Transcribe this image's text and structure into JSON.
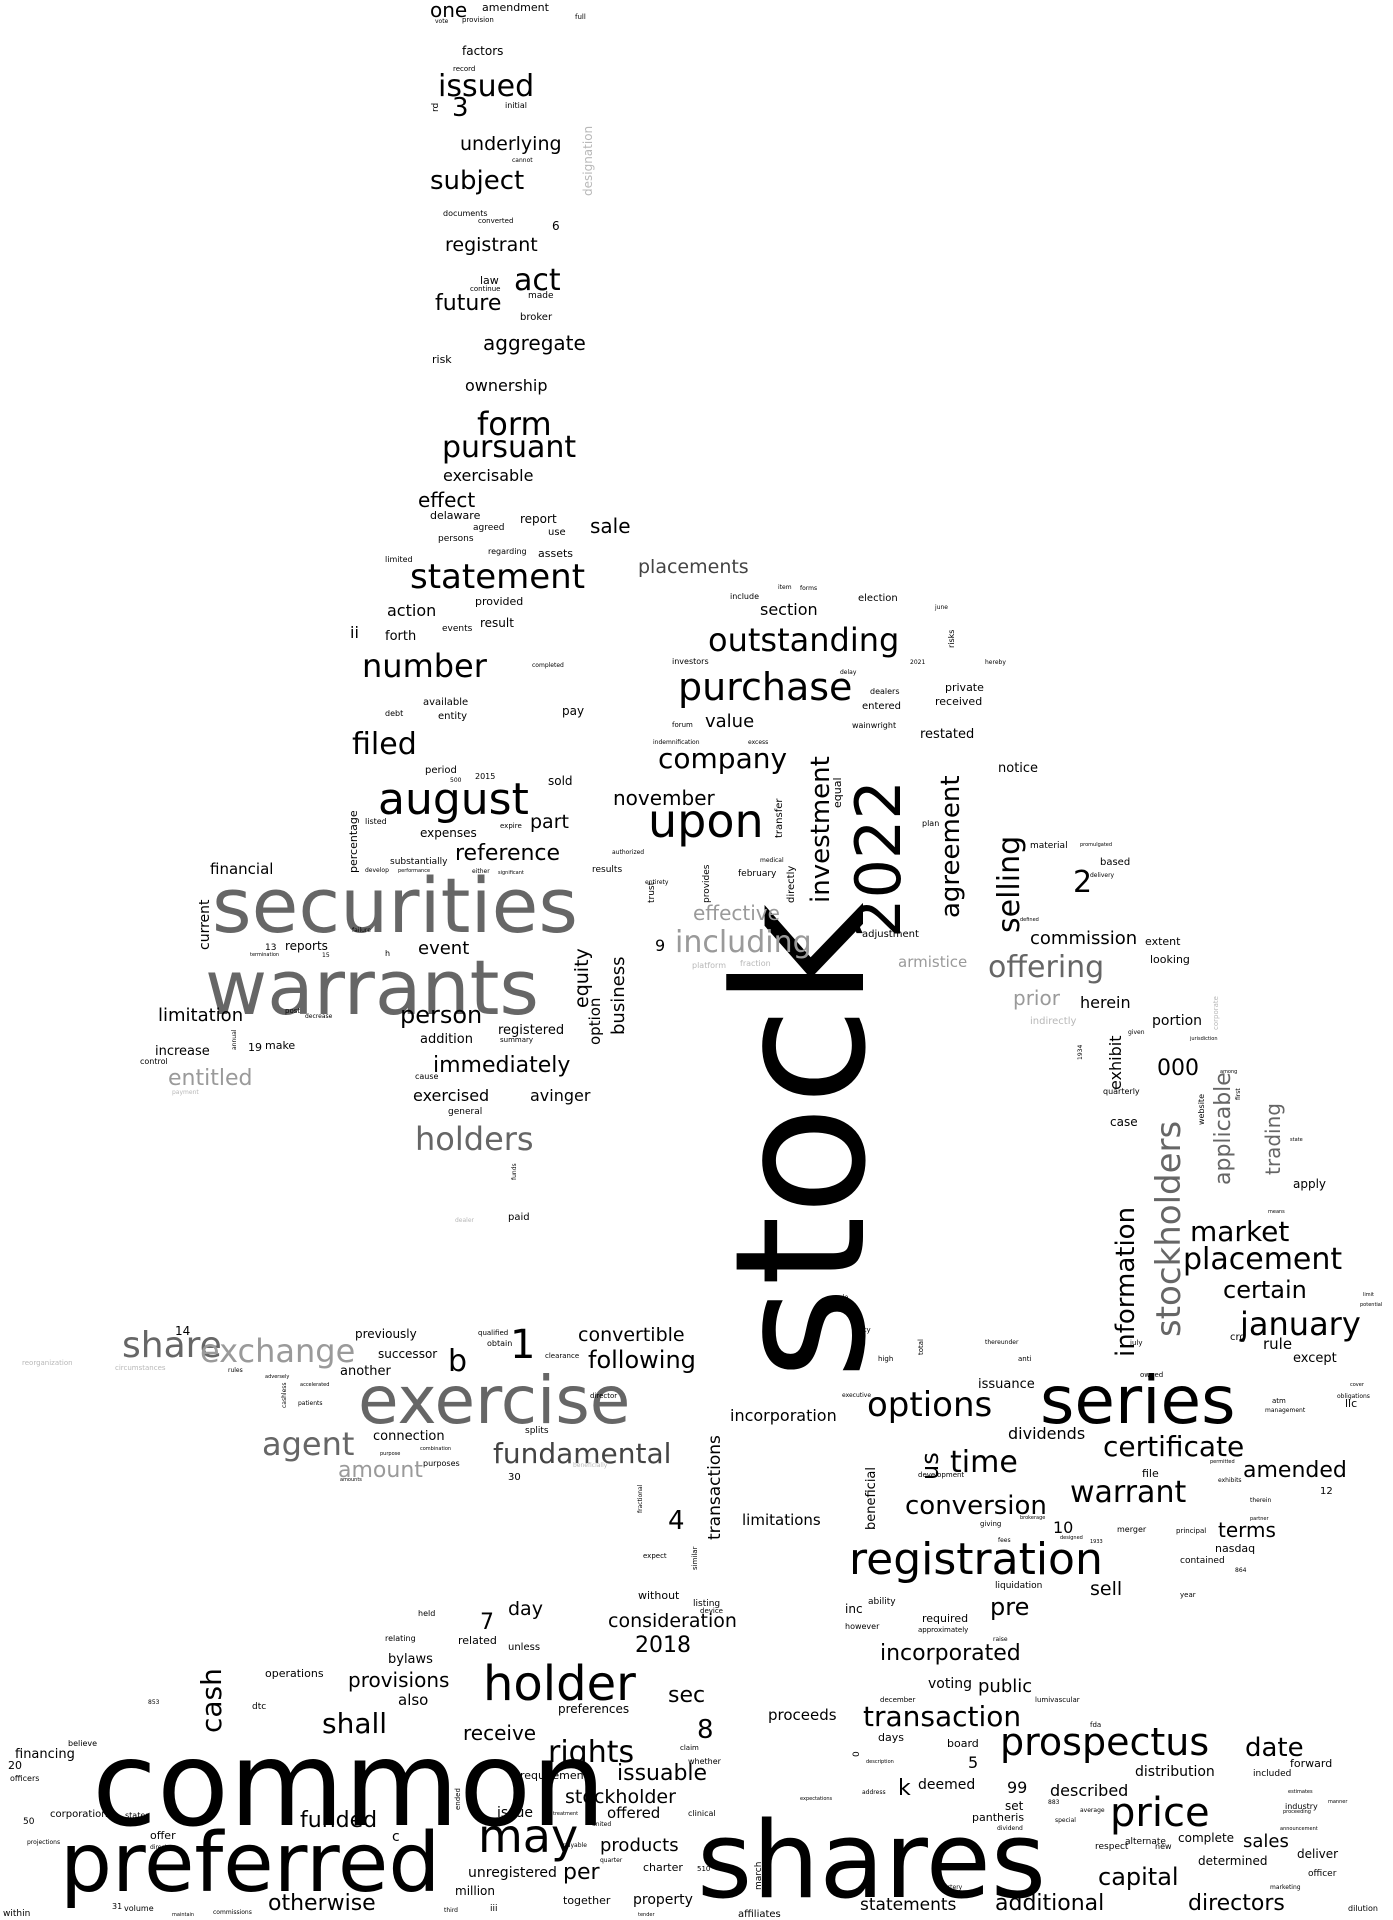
{
  "words": {
    "stock": "stock",
    "common": "common",
    "shares": "shares",
    "preferred": "preferred",
    "securities": "securities",
    "warrants": "warrants",
    "exercise": "exercise",
    "series": "series",
    "2022": "2022",
    "registration": "registration",
    "holder": "holder",
    "prospectus": "prospectus",
    "may": "may",
    "august": "august",
    "upon": "upon",
    "purchase": "purchase",
    "statement": "statement",
    "outstanding": "outstanding",
    "number": "number",
    "filed": "filed",
    "company": "company",
    "investment": "investment",
    "agreement": "agreement",
    "selling": "selling",
    "including": "including",
    "offering": "offering",
    "stockholders": "stockholders",
    "information": "information",
    "placement": "placement",
    "market": "market",
    "january": "january",
    "certain": "certain",
    "options": "options",
    "certificate": "certificate",
    "amended": "amended",
    "warrant": "warrant",
    "time": "time",
    "conversion": "conversion",
    "terms": "terms",
    "fundamental": "fundamental",
    "agent": "agent",
    "amount": "amount",
    "share": "share",
    "exchange": "exchange",
    "following": "following",
    "convertible": "convertible",
    "holders": "holders",
    "immediately": "immediately",
    "person": "person",
    "entitled": "entitled",
    "form": "form",
    "pursuant": "pursuant",
    "issued": "issued",
    "subject": "subject",
    "underlying": "underlying",
    "registrant": "registrant",
    "act": "act",
    "future": "future",
    "aggregate": "aggregate",
    "ownership": "ownership",
    "exercisable": "exercisable",
    "effect": "effect",
    "sale": "sale",
    "placements": "placements",
    "reference": "reference",
    "november": "november",
    "part": "part",
    "value": "value",
    "effective": "effective",
    "financial": "financial",
    "limitation": "limitation",
    "increase": "increase",
    "event": "event",
    "equity": "equity",
    "option": "option",
    "business": "business",
    "exercised": "exercised",
    "avinger": "avinger",
    "registered": "registered",
    "addition": "addition",
    "commission": "commission",
    "prior": "prior",
    "herein": "herein",
    "exhibit": "exhibit",
    "portion": "portion",
    "applicable": "applicable",
    "trading": "trading",
    "apply": "apply",
    "rights": "rights",
    "issuable": "issuable",
    "stockholder": "stockholder",
    "funded": "funded",
    "per": "per",
    "otherwise": "otherwise",
    "capital": "capital",
    "price": "price",
    "date": "date",
    "transaction": "transaction",
    "incorporated": "incorporated",
    "public": "public",
    "pre": "pre",
    "sell": "sell",
    "shall": "shall",
    "cash": "cash",
    "provisions": "provisions",
    "consideration": "consideration",
    "day": "day",
    "2018": "2018",
    "sec": "sec",
    "receive": "receive",
    "additional": "additional",
    "directors": "directors",
    "statements": "statements",
    "sales": "sales",
    "described": "described",
    "distribution": "distribution",
    "incorporation": "incorporation",
    "dividends": "dividends",
    "transactions": "transactions",
    "limitations": "limitations",
    "us": "us",
    "beneficial": "beneficial",
    "issuance": "issuance",
    "rule": "rule",
    "except": "except",
    "k": "k",
    "deemed": "deemed",
    "proceeds": "proceeds",
    "products": "products",
    "property": "property",
    "offered": "offered",
    "issue": "issue",
    "requirements": "requirements",
    "unregistered": "unregistered",
    "million": "million",
    "together": "together",
    "charter": "charter",
    "financing": "financing",
    "operations": "operations",
    "also": "also",
    "bylaws": "bylaws",
    "related": "related",
    "preferences": "preferences",
    "voting": "voting",
    "without": "without",
    "listing": "listing",
    "connection": "connection",
    "another": "another",
    "successor": "successor",
    "previously": "previously",
    "action": "action",
    "forth": "forth",
    "ii": "ii",
    "result": "result",
    "provided": "provided",
    "section": "section",
    "private": "private",
    "received": "received",
    "restated": "restated",
    "notice": "notice",
    "entered": "entered",
    "dealers": "dealers",
    "election": "election",
    "factors": "factors",
    "one": "one",
    "amendment": "amendment",
    "documents": "documents",
    "converted": "converted",
    "risk": "risk",
    "law": "law",
    "broker": "broker",
    "continue": "continue",
    "made": "made",
    "delaware": "delaware",
    "agreed": "agreed",
    "persons": "persons",
    "report": "report",
    "use": "use",
    "assets": "assets",
    "regarding": "regarding",
    "limited": "limited",
    "events": "events",
    "available": "available",
    "entity": "entity",
    "debt": "debt",
    "pay": "pay",
    "period": "period",
    "sold": "sold",
    "expenses": "expenses",
    "percentage": "percentage",
    "substantially": "substantially",
    "results": "results",
    "current": "current",
    "reports": "reports",
    "make": "make",
    "general": "general",
    "paid": "paid",
    "transfer": "transfer",
    "equal": "equal",
    "adjustment": "adjustment",
    "platform": "platform",
    "fraction": "fraction",
    "armistice": "armistice",
    "based": "based",
    "material": "material",
    "extent": "extent",
    "looking": "looking",
    "indirectly": "indirectly",
    "case": "case",
    "quarterly": "quarterly",
    "website": "website",
    "february": "february",
    "trust": "trust",
    "provides": "provides",
    "directly": "directly",
    "nasdaq": "nasdaq",
    "contained": "contained",
    "merger": "merger",
    "principal": "principal",
    "file": "file",
    "crg": "crg",
    "llc": "llc",
    "inc": "inc",
    "ability": "ability",
    "required": "required",
    "however": "however",
    "approximately": "approximately",
    "liquidation": "liquidation",
    "days": "days",
    "board": "board",
    "pantheris": "pantheris",
    "set": "set",
    "complete": "complete",
    "determined": "determined",
    "forward": "forward",
    "included": "included",
    "respect": "respect",
    "alternate": "alternate",
    "deliver": "deliver",
    "new": "new",
    "lumivascular": "lumivascular",
    "fda": "fda",
    "december": "december",
    "average": "average",
    "officer": "officer",
    "marketing": "marketing",
    "industry": "industry",
    "dilution": "dilution",
    "clinical": "clinical",
    "affiliates": "affiliates",
    "march": "march",
    "ended": "ended",
    "corporation": "corporation",
    "states": "states",
    "offer": "offer",
    "direct": "direct",
    "volume": "volume",
    "within": "within",
    "officers": "officers",
    "believe": "believe",
    "dtc": "dtc",
    "held": "held",
    "relating": "relating",
    "unless": "unless",
    "purposes": "purposes",
    "splits": "splits",
    "director": "director",
    "obtain": "obtain",
    "clearance": "clearance",
    "dealer": "dealer",
    "designation": "designation",
    "record": "record",
    "initial": "initial",
    "provision": "provision",
    "full": "full",
    "vote": "vote",
    "cannot": "cannot",
    "completed": "completed",
    "investors": "investors",
    "forum": "forum",
    "indemnification": "indemnification",
    "excess": "excess",
    "wainwright": "wainwright",
    "june": "june",
    "risks": "risks",
    "hereby": "hereby",
    "delay": "delay",
    "item": "item",
    "forms": "forms",
    "include": "include",
    "medical": "medical",
    "plan": "plan",
    "expire": "expire",
    "listed": "listed",
    "control": "control",
    "payment": "payment",
    "annual": "annual",
    "post": "post",
    "decrease": "decrease",
    "cause": "cause",
    "summary": "summary",
    "funds": "funds",
    "develop": "develop",
    "performance": "performance",
    "either": "either",
    "significant": "significant",
    "authorized": "authorized",
    "entirety": "entirety",
    "qualified": "qualified",
    "city": "city",
    "high": "high",
    "total": "total",
    "thereunder": "thereunder",
    "anti": "anti",
    "owned": "owned",
    "july": "july",
    "obligations": "obligations",
    "atm": "atm",
    "management": "management",
    "exhibits": "exhibits",
    "therein": "therein",
    "permitted": "permitted",
    "development": "development",
    "executive": "executive",
    "giving": "giving",
    "brokerage": "brokerage",
    "fees": "fees",
    "designed": "designed",
    "year": "year",
    "similar": "similar",
    "device": "device",
    "whether": "whether",
    "claim": "claim",
    "expect": "expect",
    "fractional": "fractional",
    "beneficially": "beneficially",
    "purpose": "purpose",
    "combination": "combination",
    "cashless": "cashless",
    "patients": "patients",
    "accelerated": "accelerated",
    "adversely": "adversely",
    "reorganization": "reorganization",
    "circumstances": "circumstances",
    "rules": "rules",
    "projections": "projections",
    "maintain": "maintain",
    "commissions": "commissions",
    "third": "third",
    "united": "united",
    "quarter": "quarter",
    "payable": "payable",
    "treatment": "treatment",
    "tender": "tender",
    "expectations": "expectations",
    "artery": "artery",
    "address": "address",
    "description": "description",
    "special": "special",
    "dividend": "dividend",
    "resale": "resale",
    "termination": "termination",
    "failure": "failure",
    "defined": "defined",
    "promulgated": "promulgated",
    "delivery": "delivery",
    "raise": "raise",
    "estimates": "estimates",
    "manner": "manner",
    "means": "means",
    "among": "among",
    "state": "state",
    "jurisdiction": "jurisdiction",
    "corporate": "corporate",
    "first": "first",
    "given": "given",
    "cover": "cover",
    "partner": "partner",
    "proceeding": "proceeding",
    "announcement": "announcement",
    "limit": "limit",
    "potential": "potential",
    "amounts": "amounts",
    "n0": "0",
    "n1": "1",
    "n2": "2",
    "n3": "3",
    "n4": "4",
    "n5": "5",
    "n6": "6",
    "n7": "7",
    "n8": "8",
    "n9": "9",
    "n10": "10",
    "n12": "12",
    "n13": "13",
    "n14": "14",
    "n15": "15",
    "n19": "19",
    "n20": "20",
    "n30": "30",
    "n31": "31",
    "n50": "50",
    "n99": "99",
    "n000": "000",
    "n500": "500",
    "n510": "510",
    "n853": "853",
    "n864": "864",
    "n883": "883",
    "n1933": "1933",
    "n1934": "1934",
    "n2015": "2015",
    "n2021": "2021",
    "l_b": "b",
    "l_c": "c",
    "l_h": "h",
    "l_rd": "rd",
    "l_iii": "iii"
  }
}
